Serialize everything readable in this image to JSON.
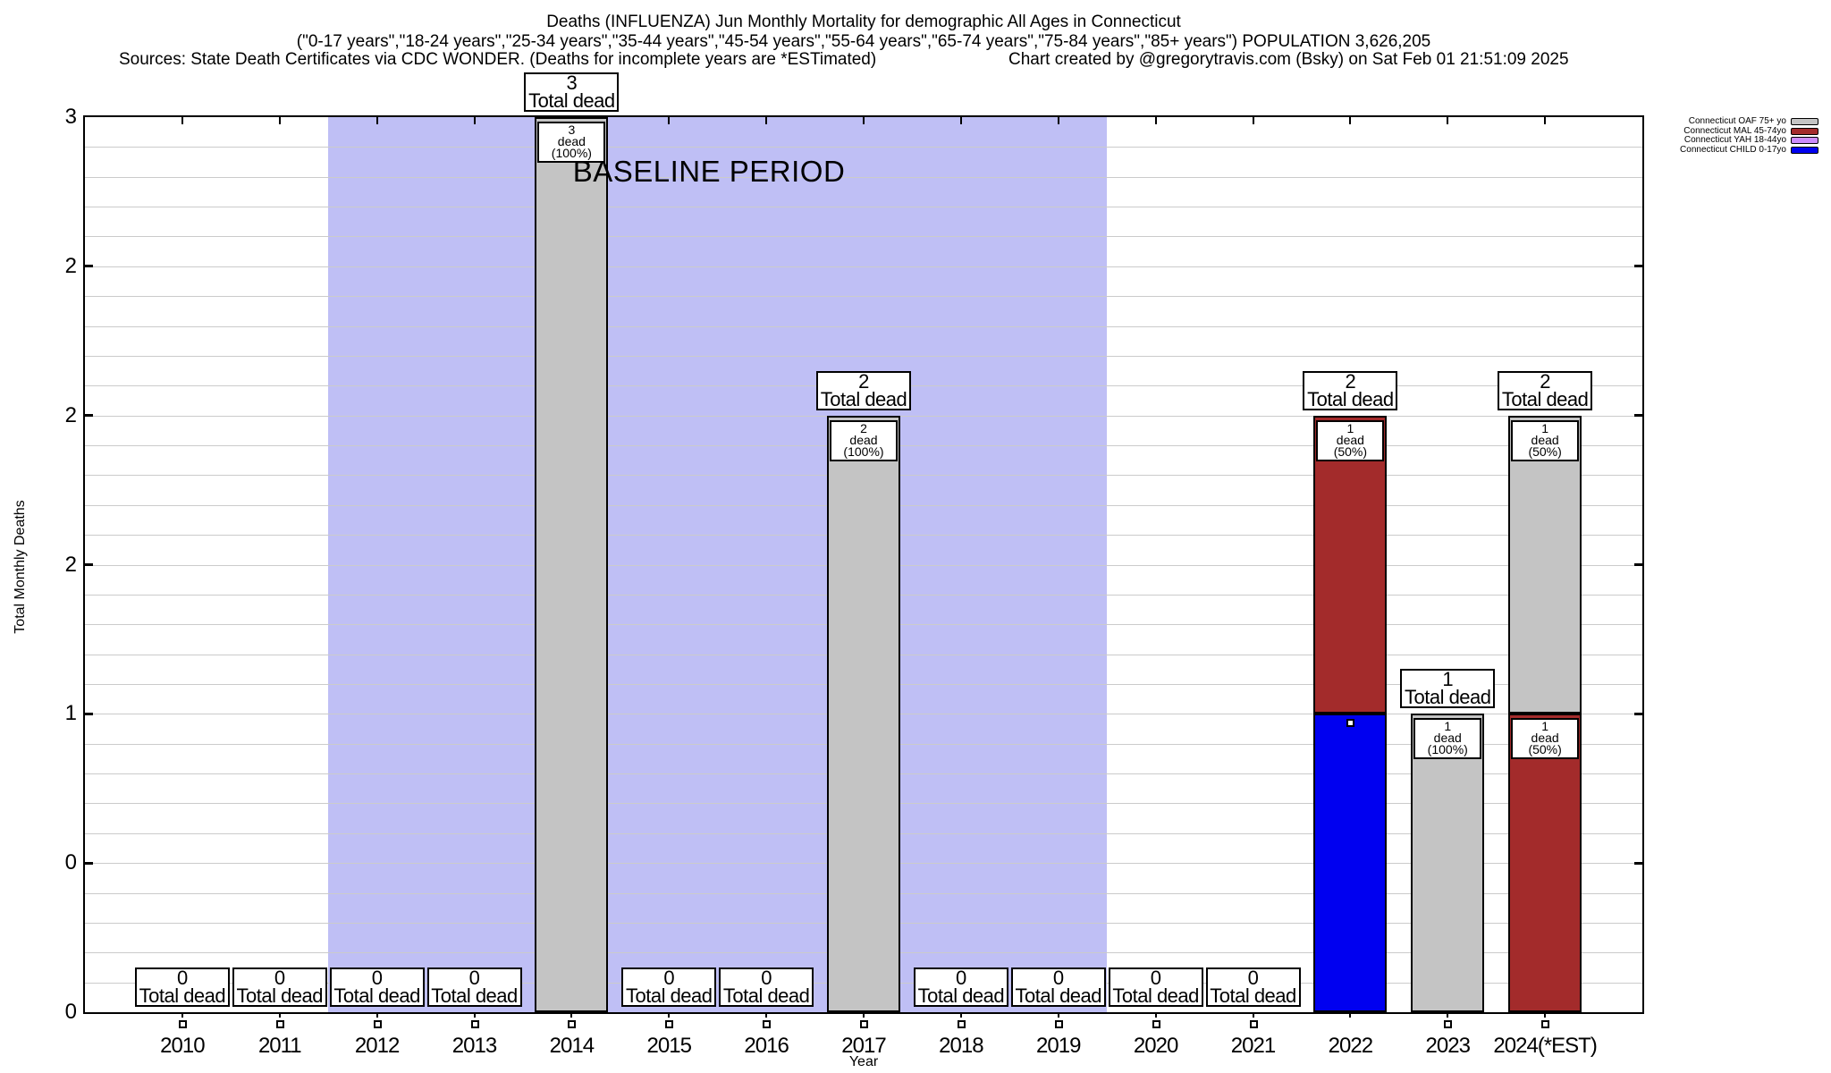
{
  "title": {
    "line1": "Deaths (INFLUENZA) Jun Monthly Mortality for demographic All Ages in Connecticut",
    "line2": "(\"0-17 years\",\"18-24 years\",\"25-34 years\",\"35-44 years\",\"45-54 years\",\"55-64 years\",\"65-74 years\",\"75-84 years\",\"85+ years\") POPULATION 3,626,205",
    "sources": "Sources: State Death Certificates via CDC WONDER. (Deaths for incomplete years are *ESTimated)",
    "credit": "Chart created by @gregorytravis.com (Bsky) on Sat Feb 01 21:51:09 2025"
  },
  "legend": {
    "position": "top-right",
    "entries": [
      {
        "label": "Connecticut OAF 75+ yo",
        "color": "#c4c4c4"
      },
      {
        "label": "Connecticut MAL 45-74yo",
        "color": "#a32b2b"
      },
      {
        "label": "Connecticut YAH 18-44yo",
        "color": "#cc8cfc"
      },
      {
        "label": "Connecticut CHILD 0-17yo",
        "color": "#0000f0"
      }
    ]
  },
  "annotations": {
    "baseline_label": "BASELINE PERIOD",
    "baseline_band_from": "between 2011 and 2012",
    "baseline_band_to": "between 2019 and 2020",
    "baseline_band_color": "#bfbff5"
  },
  "chart_data": {
    "type": "bar",
    "stacked": true,
    "title": "Deaths (INFLUENZA) Jun Monthly Mortality for demographic All Ages in Connecticut",
    "xlabel": "Year",
    "ylabel": "Total Monthly Deaths",
    "ylim": [
      0,
      3
    ],
    "ytick_interval": 0.5,
    "yticks": [
      {
        "value": 3.0,
        "label": "3"
      },
      {
        "value": 2.5,
        "label": "2"
      },
      {
        "value": 2.0,
        "label": "2"
      },
      {
        "value": 1.5,
        "label": "2"
      },
      {
        "value": 1.0,
        "label": "1"
      },
      {
        "value": 0.5,
        "label": "0"
      },
      {
        "value": 0.0,
        "label": "0"
      }
    ],
    "grid": "horizontal minor gridlines every 0.1, on",
    "legend_position": "top-right",
    "categories": [
      "2010",
      "2011",
      "2012",
      "2013",
      "2014",
      "2015",
      "2016",
      "2017",
      "2018",
      "2019",
      "2020",
      "2021",
      "2022",
      "2023",
      "2024(*EST)"
    ],
    "series": [
      {
        "name": "Connecticut OAF 75+ yo",
        "color": "#c4c4c4",
        "values": [
          0,
          0,
          0,
          0,
          3,
          0,
          0,
          2,
          0,
          0,
          0,
          0,
          0,
          1,
          1
        ]
      },
      {
        "name": "Connecticut MAL 45-74yo",
        "color": "#a32b2b",
        "values": [
          0,
          0,
          0,
          0,
          0,
          0,
          0,
          0,
          0,
          0,
          0,
          0,
          1,
          0,
          1
        ]
      },
      {
        "name": "Connecticut YAH 18-44yo",
        "color": "#cc8cfc",
        "values": [
          0,
          0,
          0,
          0,
          0,
          0,
          0,
          0,
          0,
          0,
          0,
          0,
          0,
          0,
          0
        ]
      },
      {
        "name": "Connecticut CHILD 0-17yo",
        "color": "#0000f0",
        "values": [
          0,
          0,
          0,
          0,
          0,
          0,
          0,
          0,
          0,
          0,
          0,
          0,
          1,
          0,
          0
        ]
      }
    ],
    "stack_order_bottom_to_top": [
      "Connecticut CHILD 0-17yo",
      "Connecticut YAH 18-44yo",
      "Connecticut MAL 45-74yo",
      "Connecticut OAF 75+ yo"
    ],
    "totals": [
      0,
      0,
      0,
      0,
      3,
      0,
      0,
      2,
      0,
      0,
      0,
      0,
      2,
      1,
      2
    ],
    "total_label_text": "Total dead",
    "segment_label_format": "{n} dead ({pct}%)",
    "segment_labels_visible": [
      {
        "year": "2014",
        "series": "Connecticut OAF 75+ yo",
        "text": "3 dead (100%)"
      },
      {
        "year": "2017",
        "series": "Connecticut OAF 75+ yo",
        "text": "2 dead (100%)"
      },
      {
        "year": "2022",
        "series": "Connecticut MAL 45-74yo",
        "text": "1 dead (50%)"
      },
      {
        "year": "2023",
        "series": "Connecticut OAF 75+ yo",
        "text": "1 dead (100%)"
      },
      {
        "year": "2024(*EST)",
        "series": "Connecticut OAF 75+ yo",
        "text": "1 dead (50%)"
      },
      {
        "year": "2024(*EST)",
        "series": "Connecticut MAL 45-74yo",
        "text": "1 dead (50%)"
      }
    ],
    "hidden_segment_labels": [
      {
        "year": "2022",
        "series": "Connecticut CHILD 0-17yo"
      }
    ],
    "point_markers": {
      "below_axis_years": [
        "2010",
        "2011",
        "2012",
        "2013",
        "2014",
        "2015",
        "2016",
        "2017",
        "2018",
        "2019",
        "2020",
        "2021",
        "2023",
        "2024(*EST)"
      ],
      "in_bar": [
        {
          "year": "2022",
          "value": 0.97
        }
      ]
    },
    "population": "3,626,205"
  }
}
